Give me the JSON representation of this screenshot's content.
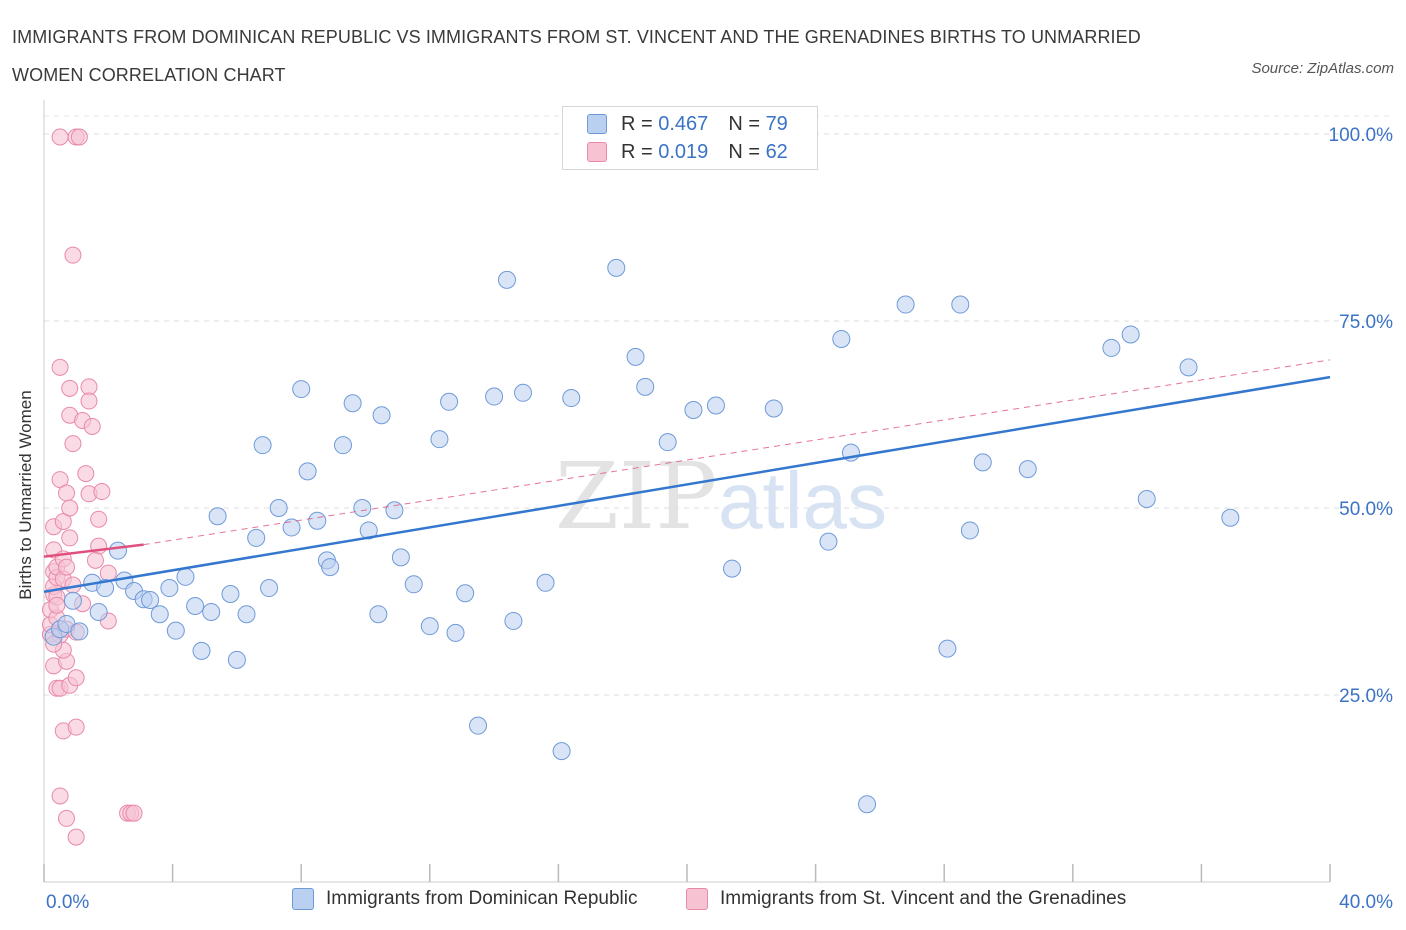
{
  "header": {
    "title": "IMMIGRANTS FROM DOMINICAN REPUBLIC VS IMMIGRANTS FROM ST. VINCENT AND THE GRENADINES BIRTHS TO UNMARRIED WOMEN CORRELATION CHART",
    "source": "Source: ZipAtlas.com"
  },
  "watermark": {
    "part1": "ZIP",
    "part2": "atlas"
  },
  "legend": {
    "r_label": "R =",
    "n_label": "N =",
    "rows": [
      {
        "r": "0.467",
        "n": "79"
      },
      {
        "r": "0.019",
        "n": "62"
      }
    ]
  },
  "chart_data": {
    "type": "scatter",
    "title": "IMMIGRANTS FROM DOMINICAN REPUBLIC VS IMMIGRANTS FROM ST. VINCENT AND THE GRENADINES BIRTHS TO UNMARRIED WOMEN CORRELATION CHART",
    "xlabel": "",
    "ylabel": "Births to Unmarried Women",
    "xlim": [
      0,
      40
    ],
    "ylim": [
      0,
      100
    ],
    "x_tick_labels": [
      "0.0%",
      "40.0%"
    ],
    "y_tick_labels": [
      "25.0%",
      "50.0%",
      "75.0%",
      "100.0%"
    ],
    "y_ticks": [
      25,
      50,
      75,
      100
    ],
    "grid": true,
    "legend_position": "top-center",
    "colors": {
      "blue_fill": "#b9d0f0",
      "blue_stroke": "#6f9ad8",
      "blue_line": "#3477cf",
      "pink_fill": "#f7c3d3",
      "pink_stroke": "#e88aa8",
      "pink_line": "#e0507e",
      "tick_label": "#3b73c6"
    },
    "series": [
      {
        "name": "Immigrants from Dominican Republic",
        "color": "blue",
        "trend": {
          "x0": 0,
          "y0": 38.8,
          "x1": 40,
          "y1": 67.5,
          "style": "solid"
        },
        "points": [
          [
            0.3,
            32.8
          ],
          [
            0.5,
            33.8
          ],
          [
            0.7,
            34.5
          ],
          [
            0.9,
            37.6
          ],
          [
            1.1,
            33.5
          ],
          [
            1.5,
            40.0
          ],
          [
            1.7,
            36.1
          ],
          [
            1.9,
            39.3
          ],
          [
            2.3,
            44.3
          ],
          [
            2.5,
            40.3
          ],
          [
            2.8,
            38.9
          ],
          [
            3.1,
            37.8
          ],
          [
            3.3,
            37.7
          ],
          [
            3.6,
            35.8
          ],
          [
            3.9,
            39.3
          ],
          [
            4.1,
            33.6
          ],
          [
            4.4,
            40.8
          ],
          [
            4.7,
            36.9
          ],
          [
            4.9,
            30.9
          ],
          [
            5.2,
            36.1
          ],
          [
            5.4,
            48.9
          ],
          [
            5.8,
            38.5
          ],
          [
            6.0,
            29.7
          ],
          [
            6.3,
            35.8
          ],
          [
            6.6,
            46.0
          ],
          [
            6.8,
            58.4
          ],
          [
            7.0,
            39.3
          ],
          [
            7.3,
            50.0
          ],
          [
            7.7,
            47.4
          ],
          [
            8.0,
            65.9
          ],
          [
            8.2,
            54.9
          ],
          [
            8.5,
            48.3
          ],
          [
            8.8,
            43.0
          ],
          [
            8.9,
            42.1
          ],
          [
            9.3,
            58.4
          ],
          [
            9.6,
            64.0
          ],
          [
            9.9,
            50.0
          ],
          [
            10.1,
            47.0
          ],
          [
            10.4,
            35.8
          ],
          [
            10.5,
            62.4
          ],
          [
            10.9,
            49.7
          ],
          [
            11.1,
            43.4
          ],
          [
            11.5,
            39.8
          ],
          [
            12.0,
            34.2
          ],
          [
            12.3,
            59.2
          ],
          [
            12.6,
            64.2
          ],
          [
            12.8,
            33.3
          ],
          [
            13.1,
            38.6
          ],
          [
            13.5,
            20.9
          ],
          [
            14.0,
            64.9
          ],
          [
            14.4,
            80.5
          ],
          [
            14.6,
            34.9
          ],
          [
            14.9,
            65.4
          ],
          [
            15.6,
            40.0
          ],
          [
            16.1,
            17.5
          ],
          [
            16.4,
            64.7
          ],
          [
            17.8,
            82.1
          ],
          [
            18.4,
            70.2
          ],
          [
            18.7,
            66.2
          ],
          [
            19.4,
            58.8
          ],
          [
            20.2,
            63.1
          ],
          [
            20.9,
            63.7
          ],
          [
            21.4,
            41.9
          ],
          [
            22.7,
            63.3
          ],
          [
            24.4,
            45.5
          ],
          [
            24.8,
            72.6
          ],
          [
            25.1,
            57.4
          ],
          [
            25.6,
            10.4
          ],
          [
            26.8,
            77.2
          ],
          [
            28.1,
            31.2
          ],
          [
            28.5,
            77.2
          ],
          [
            28.8,
            47.0
          ],
          [
            29.2,
            56.1
          ],
          [
            30.6,
            55.2
          ],
          [
            33.2,
            71.4
          ],
          [
            33.8,
            73.2
          ],
          [
            34.3,
            51.2
          ],
          [
            35.6,
            68.8
          ],
          [
            36.9,
            48.7
          ]
        ]
      },
      {
        "name": "Immigrants from St. Vincent and the Grenadines",
        "color": "pink",
        "trend": {
          "x0": 0,
          "y0": 43.5,
          "x1": 3.1,
          "y1": 45.1,
          "style": "solid",
          "ext_x1": 40,
          "ext_y1": 69.8,
          "ext_style": "dashed"
        },
        "points": [
          [
            0.2,
            33.1
          ],
          [
            0.2,
            34.4
          ],
          [
            0.2,
            36.4
          ],
          [
            0.3,
            38.4
          ],
          [
            0.3,
            39.5
          ],
          [
            0.3,
            41.5
          ],
          [
            0.3,
            44.4
          ],
          [
            0.3,
            47.5
          ],
          [
            0.3,
            28.9
          ],
          [
            0.4,
            25.9
          ],
          [
            0.4,
            35.3
          ],
          [
            0.4,
            38.1
          ],
          [
            0.4,
            40.7
          ],
          [
            0.4,
            42.1
          ],
          [
            0.5,
            53.8
          ],
          [
            0.5,
            68.8
          ],
          [
            0.5,
            99.6
          ],
          [
            0.5,
            11.5
          ],
          [
            0.5,
            25.9
          ],
          [
            0.5,
            33.0
          ],
          [
            0.6,
            20.2
          ],
          [
            0.6,
            40.5
          ],
          [
            0.6,
            43.2
          ],
          [
            0.6,
            48.2
          ],
          [
            0.7,
            52.0
          ],
          [
            0.7,
            42.1
          ],
          [
            0.7,
            29.5
          ],
          [
            0.7,
            33.8
          ],
          [
            0.7,
            8.5
          ],
          [
            0.8,
            50.0
          ],
          [
            0.8,
            62.4
          ],
          [
            0.8,
            66.0
          ],
          [
            0.8,
            26.3
          ],
          [
            0.9,
            83.8
          ],
          [
            0.9,
            58.6
          ],
          [
            1.0,
            33.4
          ],
          [
            1.0,
            20.7
          ],
          [
            1.0,
            6.0
          ],
          [
            1.0,
            27.3
          ],
          [
            1.0,
            99.6
          ],
          [
            1.1,
            99.6
          ],
          [
            1.2,
            61.7
          ],
          [
            1.3,
            54.6
          ],
          [
            1.4,
            51.9
          ],
          [
            1.4,
            66.2
          ],
          [
            1.4,
            64.3
          ],
          [
            1.5,
            60.9
          ],
          [
            1.7,
            44.9
          ],
          [
            1.7,
            48.5
          ],
          [
            1.8,
            52.2
          ],
          [
            2.0,
            34.9
          ],
          [
            2.0,
            41.3
          ],
          [
            1.6,
            43.0
          ],
          [
            1.2,
            37.2
          ],
          [
            0.9,
            39.7
          ],
          [
            0.6,
            31.0
          ],
          [
            0.3,
            31.8
          ],
          [
            2.6,
            9.2
          ],
          [
            2.7,
            9.2
          ],
          [
            2.8,
            9.2
          ],
          [
            0.4,
            37.0
          ],
          [
            0.8,
            46.0
          ]
        ]
      }
    ]
  },
  "bottom_legend": [
    {
      "label": "Immigrants from Dominican Republic"
    },
    {
      "label": "Immigrants from St. Vincent and the Grenadines"
    }
  ]
}
